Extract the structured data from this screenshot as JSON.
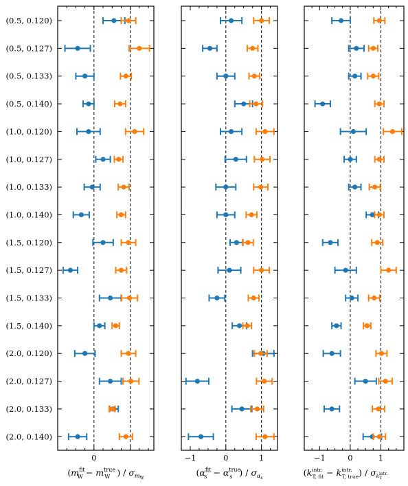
{
  "chart_data": {
    "type": "scatter",
    "row_labels": [
      "(0.5, 0.120)",
      "(0.5, 0.127)",
      "(0.5, 0.133)",
      "(0.5, 0.140)",
      "(1.0, 0.120)",
      "(1.0, 0.127)",
      "(1.0, 0.133)",
      "(1.0, 0.140)",
      "(1.5, 0.120)",
      "(1.5, 0.127)",
      "(1.5, 0.133)",
      "(1.5, 0.140)",
      "(2.0, 0.120)",
      "(2.0, 0.127)",
      "(2.0, 0.133)",
      "(2.0, 0.140)"
    ],
    "series_colors": [
      "#1f77b4",
      "#ff7f0e"
    ],
    "reference_lines": [
      0,
      1
    ],
    "panels": [
      {
        "xlabel": "(m_W^fit − m_W^true) / σ_mW",
        "xlim": [
          -1.0,
          1.65
        ],
        "xticks": [
          0
        ],
        "xticklabels": [
          "0"
        ],
        "series": [
          {
            "x": [
              0.55,
              -0.45,
              -0.25,
              -0.15,
              -0.15,
              0.25,
              -0.05,
              -0.35,
              0.25,
              -0.65,
              0.45,
              0.15,
              -0.25,
              0.45,
              0.55,
              -0.45
            ],
            "err": [
              0.3,
              0.35,
              0.25,
              0.15,
              0.32,
              0.2,
              0.22,
              0.22,
              0.28,
              0.2,
              0.3,
              0.15,
              0.28,
              0.3,
              0.12,
              0.25
            ]
          },
          {
            "x": [
              0.95,
              1.25,
              0.88,
              0.72,
              1.12,
              0.68,
              0.82,
              0.75,
              0.95,
              0.75,
              0.98,
              0.6,
              0.95,
              1.02,
              0.5,
              0.88
            ],
            "err": [
              0.2,
              0.28,
              0.15,
              0.15,
              0.25,
              0.12,
              0.15,
              0.12,
              0.2,
              0.15,
              0.22,
              0.1,
              0.2,
              0.22,
              0.08,
              0.18
            ]
          }
        ]
      },
      {
        "xlabel": "(α_s^fit − α_s^true) / σ_αs",
        "xlim": [
          -1.25,
          1.45
        ],
        "xticks": [
          -1,
          0,
          1
        ],
        "xticklabels": [
          "−1",
          "0",
          "1"
        ],
        "series": [
          {
            "x": [
              0.15,
              -0.45,
              0.0,
              0.5,
              0.15,
              0.28,
              0.0,
              0.0,
              0.3,
              0.1,
              -0.25,
              0.38,
              1.05,
              -0.8,
              0.45,
              -0.7
            ],
            "err": [
              0.3,
              0.2,
              0.25,
              0.25,
              0.3,
              0.3,
              0.28,
              0.25,
              0.18,
              0.32,
              0.22,
              0.2,
              0.3,
              0.32,
              0.28,
              0.35
            ]
          },
          {
            "x": [
              1.0,
              0.75,
              0.8,
              0.85,
              1.1,
              1.02,
              0.98,
              0.72,
              0.62,
              1.0,
              0.78,
              0.6,
              0.98,
              1.08,
              0.88,
              1.1
            ],
            "err": [
              0.22,
              0.15,
              0.15,
              0.18,
              0.25,
              0.22,
              0.2,
              0.15,
              0.15,
              0.22,
              0.15,
              0.12,
              0.18,
              0.22,
              0.18,
              0.25
            ]
          }
        ]
      },
      {
        "xlabel": "(k_T,fit^intr. − k_T,true^intr.) / σ_kT^intr.",
        "xlim": [
          -1.5,
          1.75
        ],
        "xticks": [
          -1,
          0,
          1
        ],
        "xticklabels": [
          "−1",
          "0",
          "1"
        ],
        "series": [
          {
            "x": [
              -0.3,
              0.2,
              0.15,
              -0.9,
              0.1,
              0.0,
              0.15,
              0.72,
              -0.65,
              -0.15,
              0.05,
              -0.45,
              -0.6,
              0.5,
              -0.6,
              0.72
            ],
            "err": [
              0.3,
              0.25,
              0.2,
              0.25,
              0.42,
              0.2,
              0.2,
              0.2,
              0.25,
              0.35,
              0.2,
              0.15,
              0.28,
              0.35,
              0.25,
              0.3
            ]
          },
          {
            "x": [
              0.95,
              0.75,
              0.75,
              0.95,
              1.38,
              0.95,
              0.8,
              0.95,
              0.88,
              1.25,
              0.78,
              0.55,
              1.02,
              1.15,
              0.92,
              0.95
            ],
            "err": [
              0.18,
              0.15,
              0.18,
              0.15,
              0.3,
              0.15,
              0.18,
              0.15,
              0.18,
              0.25,
              0.18,
              0.12,
              0.18,
              0.22,
              0.2,
              0.2
            ]
          }
        ]
      }
    ]
  }
}
